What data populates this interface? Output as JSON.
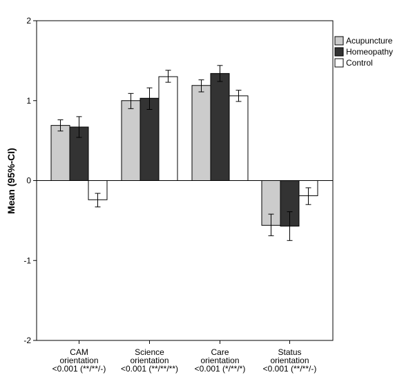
{
  "chart_data": {
    "type": "bar",
    "ylabel": "Mean (95%-CI)",
    "ylim": [
      -2,
      2
    ],
    "yticks": [
      "2",
      "1",
      "0",
      "-1",
      "-2"
    ],
    "categories": [
      [
        "CAM",
        "orientation",
        "<0.001 (**/**/-)"
      ],
      [
        "Science",
        "orientation",
        "<0.001 (**/**/**)"
      ],
      [
        "Care",
        "orientation",
        "<0.001 (*/**/*)"
      ],
      [
        "Status",
        "orientation",
        "<0.001 (**/**/-)"
      ]
    ],
    "series": [
      {
        "name": "Acupuncture",
        "color": "#cccccc",
        "values": [
          0.69,
          1.0,
          1.19,
          -0.56
        ],
        "ci_low": [
          0.62,
          0.9,
          1.11,
          -0.69
        ],
        "ci_high": [
          0.76,
          1.09,
          1.26,
          -0.42
        ]
      },
      {
        "name": "Homeopathy",
        "color": "#333333",
        "values": [
          0.67,
          1.03,
          1.34,
          -0.57
        ],
        "ci_low": [
          0.54,
          0.89,
          1.24,
          -0.75
        ],
        "ci_high": [
          0.8,
          1.16,
          1.44,
          -0.39
        ]
      },
      {
        "name": "Control",
        "color": "#ffffff",
        "values": [
          -0.24,
          1.3,
          1.06,
          -0.19
        ],
        "ci_low": [
          -0.33,
          1.23,
          0.99,
          -0.3
        ],
        "ci_high": [
          -0.16,
          1.38,
          1.13,
          -0.09
        ]
      }
    ],
    "legend_position": "top-right",
    "grid": false
  }
}
